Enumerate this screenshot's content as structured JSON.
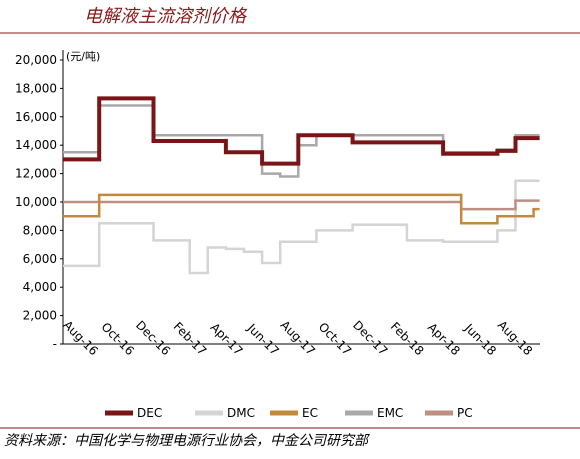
{
  "chart_data": {
    "type": "step-line",
    "title": "电解液主流溶剂价格",
    "y_unit": "(元/吨)",
    "source": "资料来源：中国化学与物理电源行业协会，中金公司研究部",
    "categories": [
      "Aug-16",
      null,
      "Oct-16",
      null,
      "Dec-16",
      null,
      "Feb-17",
      null,
      "Apr-17",
      null,
      "Jun-17",
      null,
      "Aug-17",
      null,
      "Oct-17",
      null,
      "Dec-17",
      null,
      "Feb-18",
      null,
      "Apr-18",
      null,
      "Jun-18",
      null,
      "Aug-18",
      null,
      null
    ],
    "series": [
      {
        "name": "DEC",
        "color": "#7b1416",
        "width": 4,
        "values": [
          13000,
          13000,
          17300,
          17300,
          17300,
          14300,
          14300,
          14300,
          14300,
          13500,
          13500,
          12700,
          12700,
          14700,
          14700,
          14700,
          14200,
          14200,
          14200,
          14200,
          14200,
          13400,
          13400,
          13400,
          13600,
          14500,
          14500
        ]
      },
      {
        "name": "DMC",
        "color": "#d4d4d4",
        "width": 2.5,
        "values": [
          5500,
          5500,
          8500,
          8500,
          8500,
          7300,
          7300,
          5000,
          6800,
          6700,
          6500,
          5700,
          7200,
          7200,
          8000,
          8000,
          8400,
          8400,
          8400,
          7300,
          7300,
          7200,
          7200,
          7200,
          8000,
          11500,
          11500
        ]
      },
      {
        "name": "EC",
        "color": "#c48a3c",
        "width": 2.5,
        "values": [
          9000,
          9000,
          10500,
          10500,
          10500,
          10500,
          10500,
          10500,
          10500,
          10500,
          10500,
          10500,
          10500,
          10500,
          10500,
          10500,
          10500,
          10500,
          10500,
          10500,
          10500,
          10500,
          8500,
          8500,
          9000,
          9000,
          9500
        ]
      },
      {
        "name": "EMC",
        "color": "#a8a8a8",
        "width": 2.5,
        "values": [
          13500,
          13500,
          16800,
          16800,
          16800,
          14700,
          14700,
          14700,
          14700,
          14700,
          14700,
          12000,
          11800,
          14000,
          14700,
          14700,
          14700,
          14700,
          14700,
          14700,
          14700,
          13500,
          13500,
          13500,
          13700,
          14700,
          14700
        ]
      },
      {
        "name": "PC",
        "color": "#bf8f82",
        "width": 2.5,
        "values": [
          10000,
          10000,
          10000,
          10000,
          10000,
          10000,
          10000,
          10000,
          10000,
          10000,
          10000,
          10000,
          10000,
          10000,
          10000,
          10000,
          10000,
          10000,
          10000,
          10000,
          10000,
          10000,
          9500,
          9500,
          9500,
          10100,
          10100
        ]
      }
    ],
    "ylim": [
      0,
      20000
    ],
    "yticks": [
      {
        "value": 0,
        "label": "-"
      },
      {
        "value": 2000,
        "label": "2,000"
      },
      {
        "value": 4000,
        "label": "4,000"
      },
      {
        "value": 6000,
        "label": "6,000"
      },
      {
        "value": 8000,
        "label": "8,000"
      },
      {
        "value": 10000,
        "label": "10,000"
      },
      {
        "value": 12000,
        "label": "12,000"
      },
      {
        "value": 14000,
        "label": "14,000"
      },
      {
        "value": 16000,
        "label": "16,000"
      },
      {
        "value": 18000,
        "label": "18,000"
      },
      {
        "value": 20000,
        "label": "20,000"
      }
    ],
    "grid": false
  }
}
